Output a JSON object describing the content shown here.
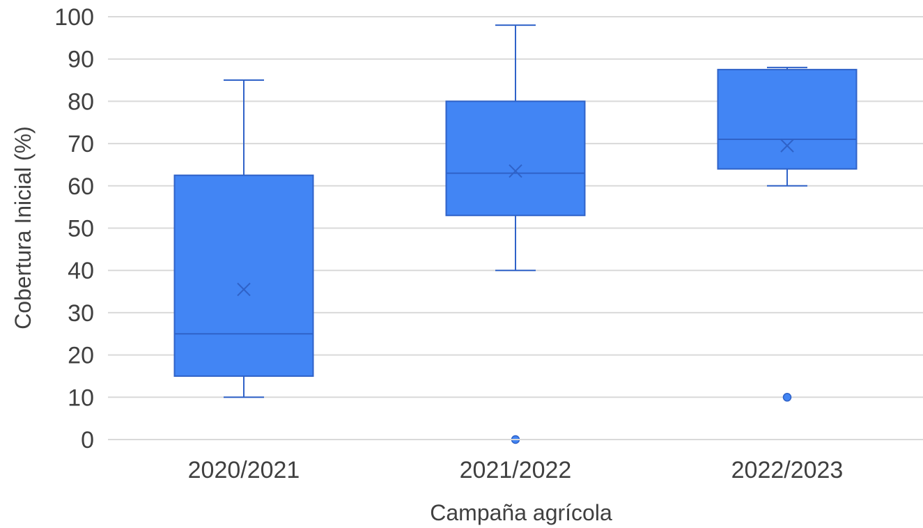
{
  "chart_data": {
    "type": "box",
    "title": "",
    "xlabel": "Campaña agrícola",
    "ylabel": "Cobertura Inicial (%)",
    "ylim": [
      0,
      100
    ],
    "yticks": [
      "0",
      "10",
      "20",
      "30",
      "40",
      "50",
      "60",
      "70",
      "80",
      "90",
      "100"
    ],
    "grid": true,
    "color": "#4285F4",
    "edge_color": "#2F62C8",
    "categories": [
      "2020/2021",
      "2021/2022",
      "2022/2023"
    ],
    "boxes": [
      {
        "category": "2020/2021",
        "min": 10,
        "q1": 15,
        "median": 25,
        "q3": 62.5,
        "max": 85,
        "mean": 35.5,
        "outliers": []
      },
      {
        "category": "2021/2022",
        "min": 40,
        "q1": 53,
        "median": 63,
        "q3": 80,
        "max": 98,
        "mean": 63.5,
        "outliers": [
          0
        ]
      },
      {
        "category": "2022/2023",
        "min": 60,
        "q1": 64,
        "median": 71,
        "q3": 87.5,
        "max": 88,
        "mean": 69.5,
        "outliers": [
          10
        ]
      }
    ]
  }
}
